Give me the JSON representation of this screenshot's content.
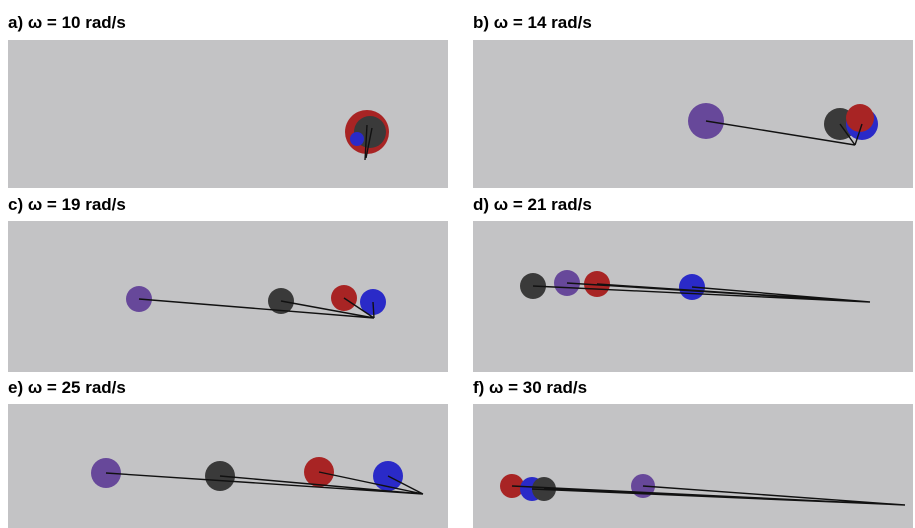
{
  "panels": [
    {
      "title": "a) ω = 10 rad/s"
    },
    {
      "title": "b) ω = 14 rad/s"
    },
    {
      "title": "c) ω = 19 rad/s"
    },
    {
      "title": "d) ω = 21 rad/s"
    },
    {
      "title": "e) ω = 25 rad/s"
    },
    {
      "title": "f) ω = 30 rad/s"
    }
  ]
}
